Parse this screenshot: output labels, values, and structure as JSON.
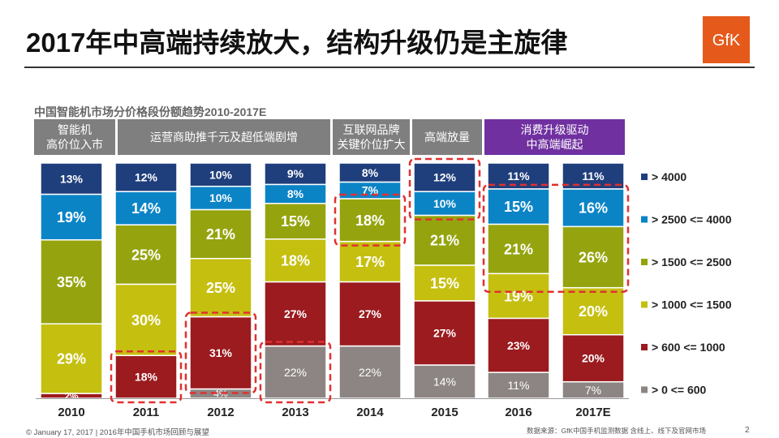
{
  "header": {
    "title": "2017年中高端持续放大，结构升级仍是主旋律",
    "logo_text": "GfK",
    "logo_color": "#e55a1b"
  },
  "phases": [
    {
      "label": "智能机\n高价位入市",
      "color": "#7f7f7f"
    },
    {
      "label": "运营商助推千元及超低端剧增",
      "color": "#7f7f7f"
    },
    {
      "label": "互联网品牌\n关键价位扩大",
      "color": "#7f7f7f"
    },
    {
      "label": "高端放量",
      "color": "#7f7f7f"
    },
    {
      "label": "消费升级驱动\n中高端崛起",
      "color": "#7030a0"
    }
  ],
  "chart_data": {
    "type": "bar",
    "stacked": true,
    "normalized_percent": true,
    "title": "中国智能机市场分价格段份额趋势2010-2017E",
    "categories": [
      "2010",
      "2011",
      "2012",
      "2013",
      "2014",
      "2015",
      "2016",
      "2017E"
    ],
    "series": [
      {
        "name": "> 0 <= 600",
        "color": "#8c8583",
        "values": [
          0,
          0,
          4,
          22,
          22,
          14,
          11,
          7
        ],
        "labels": [
          "",
          "",
          "4%",
          "22%",
          "22%",
          "14%",
          "11%",
          "7%"
        ]
      },
      {
        "name": "> 600 <= 1000",
        "color": "#9b1b1f",
        "values": [
          2,
          18,
          31,
          27,
          27,
          27,
          23,
          20
        ],
        "labels": [
          "2%",
          "18%",
          "31%",
          "27%",
          "27%",
          "27%",
          "23%",
          "20%"
        ]
      },
      {
        "name": "> 1000 <= 1500",
        "color": "#c5bf10",
        "values": [
          29,
          30,
          25,
          18,
          17,
          15,
          19,
          20
        ],
        "labels": [
          "29%",
          "30%",
          "25%",
          "18%",
          "17%",
          "15%",
          "19%",
          "20%"
        ]
      },
      {
        "name": "> 1500 <= 2500",
        "color": "#95a40e",
        "values": [
          35,
          25,
          21,
          15,
          18,
          21,
          21,
          26
        ],
        "labels": [
          "35%",
          "25%",
          "21%",
          "15%",
          "18%",
          "21%",
          "21%",
          "26%"
        ]
      },
      {
        "name": "> 2500 <= 4000",
        "color": "#0b84c6",
        "values": [
          19,
          14,
          10,
          8,
          7,
          10,
          15,
          16
        ],
        "labels": [
          "19%",
          "14%",
          "10%",
          "8%",
          "7%",
          "10%",
          "15%",
          "16%"
        ]
      },
      {
        "name": "> 4000",
        "color": "#1f3e7c",
        "values": [
          13,
          12,
          10,
          9,
          8,
          12,
          11,
          11
        ],
        "labels": [
          "13%",
          "12%",
          "10%",
          "9%",
          "8%",
          "12%",
          "11%",
          "11%"
        ]
      }
    ],
    "legend_order": [
      "> 4000",
      "> 2500 <= 4000",
      "> 1500 <= 2500",
      "> 1000 <= 1500",
      "> 600 <= 1000",
      "> 0 <= 600"
    ],
    "legend_position": "right",
    "highlights": [
      {
        "category": "2011",
        "series": [
          "> 600 <= 1000"
        ]
      },
      {
        "category": "2012",
        "series": [
          "> 600 <= 1000"
        ]
      },
      {
        "category": "2013",
        "series": [
          "> 0 <= 600"
        ]
      },
      {
        "category": "2014",
        "series": [
          "> 1500 <= 2500"
        ]
      },
      {
        "category": "2015",
        "series": [
          "> 2500 <= 4000",
          "> 4000"
        ]
      },
      {
        "category_range": [
          "2016",
          "2017E"
        ],
        "series": [
          "> 1500 <= 2500",
          "> 2500 <= 4000"
        ]
      }
    ]
  },
  "footer": {
    "left": "© January 17, 2017 | 2016年中国手机市场回顾与展望",
    "source": "数据来源：GfK中国手机监测数据 含线上、线下及官网市场",
    "page": "2"
  }
}
